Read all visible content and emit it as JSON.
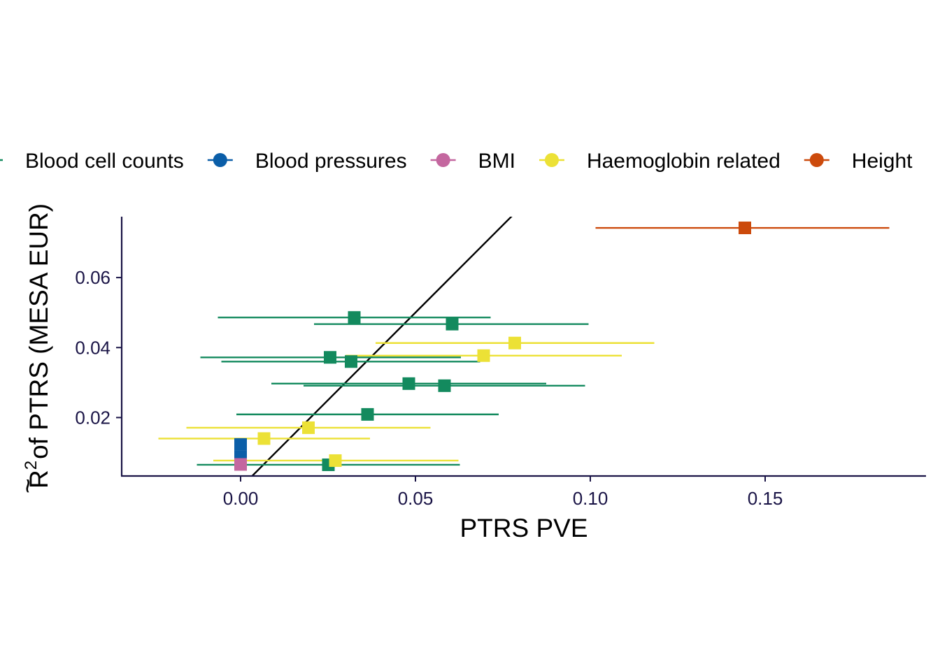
{
  "chart_data": {
    "type": "scatter",
    "xlabel": "PTRS PVE",
    "ylabel_prefix": "R",
    "ylabel_accent": "~",
    "ylabel_superscript": "2",
    "ylabel_rest": "of PTRS (MESA EUR)",
    "xlim": [
      -0.034,
      0.196
    ],
    "ylim": [
      0.0033,
      0.0774
    ],
    "x_ticks": [
      0.0,
      0.05,
      0.1,
      0.15
    ],
    "x_tick_labels": [
      "0.00",
      "0.05",
      "0.10",
      "0.15"
    ],
    "y_ticks": [
      0.02,
      0.04,
      0.06
    ],
    "y_tick_labels": [
      "0.02",
      "0.04",
      "0.06"
    ],
    "reference_line": {
      "slope": 1,
      "intercept": 0,
      "color": "#000000"
    },
    "grid": false,
    "legend_position": "top",
    "legend": [
      {
        "name": "Blood cell counts",
        "color": "#138a5e"
      },
      {
        "name": "Blood pressures",
        "color": "#0b5ea8"
      },
      {
        "name": "BMI",
        "color": "#c4679f"
      },
      {
        "name": "Haemoglobin related",
        "color": "#ece136"
      },
      {
        "name": "Height",
        "color": "#cc4a0c"
      }
    ],
    "series": [
      {
        "name": "Blood cell counts",
        "color": "#138a5e",
        "points": [
          {
            "x": 0.0325,
            "y": 0.0486,
            "xmin": -0.0065,
            "xmax": 0.0715
          },
          {
            "x": 0.0605,
            "y": 0.0467,
            "xmin": 0.021,
            "xmax": 0.0995
          },
          {
            "x": 0.0256,
            "y": 0.0372,
            "xmin": -0.0115,
            "xmax": 0.063
          },
          {
            "x": 0.0316,
            "y": 0.036,
            "xmin": -0.0055,
            "xmax": 0.0685
          },
          {
            "x": 0.0481,
            "y": 0.0297,
            "xmin": 0.0088,
            "xmax": 0.0874
          },
          {
            "x": 0.0583,
            "y": 0.0291,
            "xmin": 0.018,
            "xmax": 0.0985
          },
          {
            "x": 0.0363,
            "y": 0.0209,
            "xmin": -0.0012,
            "xmax": 0.0738
          },
          {
            "x": 0.0251,
            "y": 0.0065,
            "xmin": -0.0125,
            "xmax": 0.0627
          }
        ]
      },
      {
        "name": "Blood pressures",
        "color": "#0b5ea8",
        "points": [
          {
            "x": 0.0,
            "y": 0.0123,
            "xmin": 0.0,
            "xmax": 0.0
          },
          {
            "x": 0.0,
            "y": 0.0087,
            "xmin": 0.0,
            "xmax": 0.0
          }
        ]
      },
      {
        "name": "BMI",
        "color": "#c4679f",
        "points": [
          {
            "x": 0.0,
            "y": 0.0066,
            "xmin": 0.0,
            "xmax": 0.0
          }
        ]
      },
      {
        "name": "Haemoglobin related",
        "color": "#ece136",
        "points": [
          {
            "x": 0.0784,
            "y": 0.0413,
            "xmin": 0.0386,
            "xmax": 0.1183
          },
          {
            "x": 0.0695,
            "y": 0.0377,
            "xmin": 0.03,
            "xmax": 0.109
          },
          {
            "x": 0.0194,
            "y": 0.0171,
            "xmin": -0.0155,
            "xmax": 0.0543
          },
          {
            "x": 0.0067,
            "y": 0.014,
            "xmin": -0.0235,
            "xmax": 0.037
          },
          {
            "x": 0.0271,
            "y": 0.0077,
            "xmin": -0.0078,
            "xmax": 0.0623
          }
        ]
      },
      {
        "name": "Height",
        "color": "#cc4a0c",
        "points": [
          {
            "x": 0.1442,
            "y": 0.0742,
            "xmin": 0.1015,
            "xmax": 0.1855
          }
        ]
      }
    ]
  }
}
